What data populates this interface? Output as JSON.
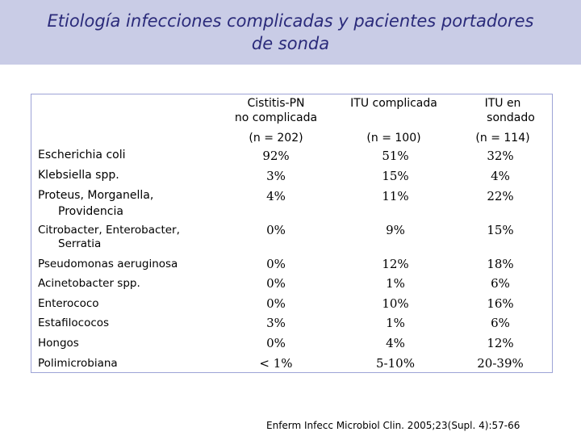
{
  "title": {
    "line1": "Etiología infecciones complicadas y pacientes portadores",
    "line2": "de sonda"
  },
  "table": {
    "columns": [
      {
        "line1": "Cistitis-PN",
        "line2": "no complicada",
        "n": "(n = 202)"
      },
      {
        "line1": "ITU complicada",
        "line2": "",
        "n": "(n = 100)"
      },
      {
        "line1": "ITU en",
        "line2": "sondado",
        "n": "(n = 114)"
      }
    ],
    "rows": [
      {
        "label": "Escherichia coli",
        "label2": "",
        "values": [
          "92%",
          "51%",
          "32%"
        ]
      },
      {
        "label": "Klebsiella spp.",
        "label2": "",
        "values": [
          "3%",
          "15%",
          "4%"
        ]
      },
      {
        "label": "Proteus, Morganella,",
        "label2": "Providencia",
        "values": [
          "4%",
          "11%",
          "22%"
        ]
      },
      {
        "label": "Citrobacter, Enterobacter,",
        "label2": "Serratia",
        "values": [
          "0%",
          "9%",
          "15%"
        ]
      },
      {
        "label": "Pseudomonas aeruginosa",
        "label2": "",
        "values": [
          "0%",
          "12%",
          "18%"
        ]
      },
      {
        "label": "Acinetobacter spp.",
        "label2": "",
        "values": [
          "0%",
          "1%",
          "6%"
        ]
      },
      {
        "label": "Enterococo",
        "label2": "",
        "values": [
          "0%",
          "10%",
          "16%"
        ]
      },
      {
        "label": "Estafilococos",
        "label2": "",
        "values": [
          "3%",
          "1%",
          "6%"
        ]
      },
      {
        "label": "Hongos",
        "label2": "",
        "values": [
          "0%",
          "4%",
          "12%"
        ]
      },
      {
        "label": "Polimicrobiana",
        "label2": "",
        "values": [
          "< 1%",
          "5-10%",
          "20-39%"
        ]
      }
    ]
  },
  "footer": "Enferm Infecc Microbiol Clin. 2005;23(Supl. 4):57-66"
}
